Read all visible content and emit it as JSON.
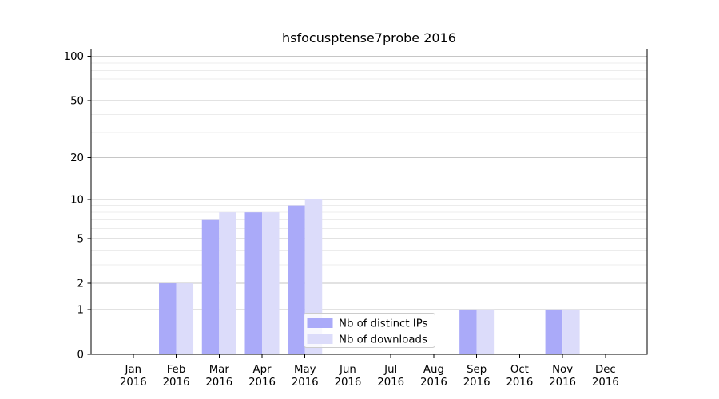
{
  "figure": {
    "title": "hsfocusptense7probe 2016",
    "background": "#ffffff"
  },
  "chart_data": {
    "type": "bar",
    "title": "hsfocusptense7probe 2016",
    "x_categories": [
      {
        "month": "Jan",
        "year": "2016"
      },
      {
        "month": "Feb",
        "year": "2016"
      },
      {
        "month": "Mar",
        "year": "2016"
      },
      {
        "month": "Apr",
        "year": "2016"
      },
      {
        "month": "May",
        "year": "2016"
      },
      {
        "month": "Jun",
        "year": "2016"
      },
      {
        "month": "Jul",
        "year": "2016"
      },
      {
        "month": "Aug",
        "year": "2016"
      },
      {
        "month": "Sep",
        "year": "2016"
      },
      {
        "month": "Oct",
        "year": "2016"
      },
      {
        "month": "Nov",
        "year": "2016"
      },
      {
        "month": "Dec",
        "year": "2016"
      }
    ],
    "series": [
      {
        "name": "Nb of distinct IPs",
        "color": "#aaaaf9",
        "values": [
          0,
          2,
          7,
          8,
          9,
          0,
          0,
          0,
          1,
          0,
          1,
          0
        ]
      },
      {
        "name": "Nb of downloads",
        "color": "#dcdcfa",
        "values": [
          0,
          2,
          8,
          8,
          10,
          0,
          0,
          0,
          1,
          0,
          1,
          0
        ]
      }
    ],
    "y_axis": {
      "scale": "log1p",
      "major_ticks": [
        0,
        1,
        2,
        5,
        10,
        20,
        50,
        100
      ],
      "minor_gridlines": [
        3,
        4,
        6,
        7,
        8,
        9,
        30,
        40,
        60,
        70,
        80,
        90
      ],
      "range": [
        0,
        112
      ]
    },
    "legend": {
      "entries": [
        "Nb of distinct IPs",
        "Nb of downloads"
      ],
      "position": "lower center"
    },
    "grid": true,
    "colors": {
      "major_grid": "#c6c6c6",
      "minor_grid": "#ececec",
      "spine": "#000000",
      "legend_border": "#cccccc",
      "legend_bg": "rgba(255,255,255,0.8)"
    }
  }
}
